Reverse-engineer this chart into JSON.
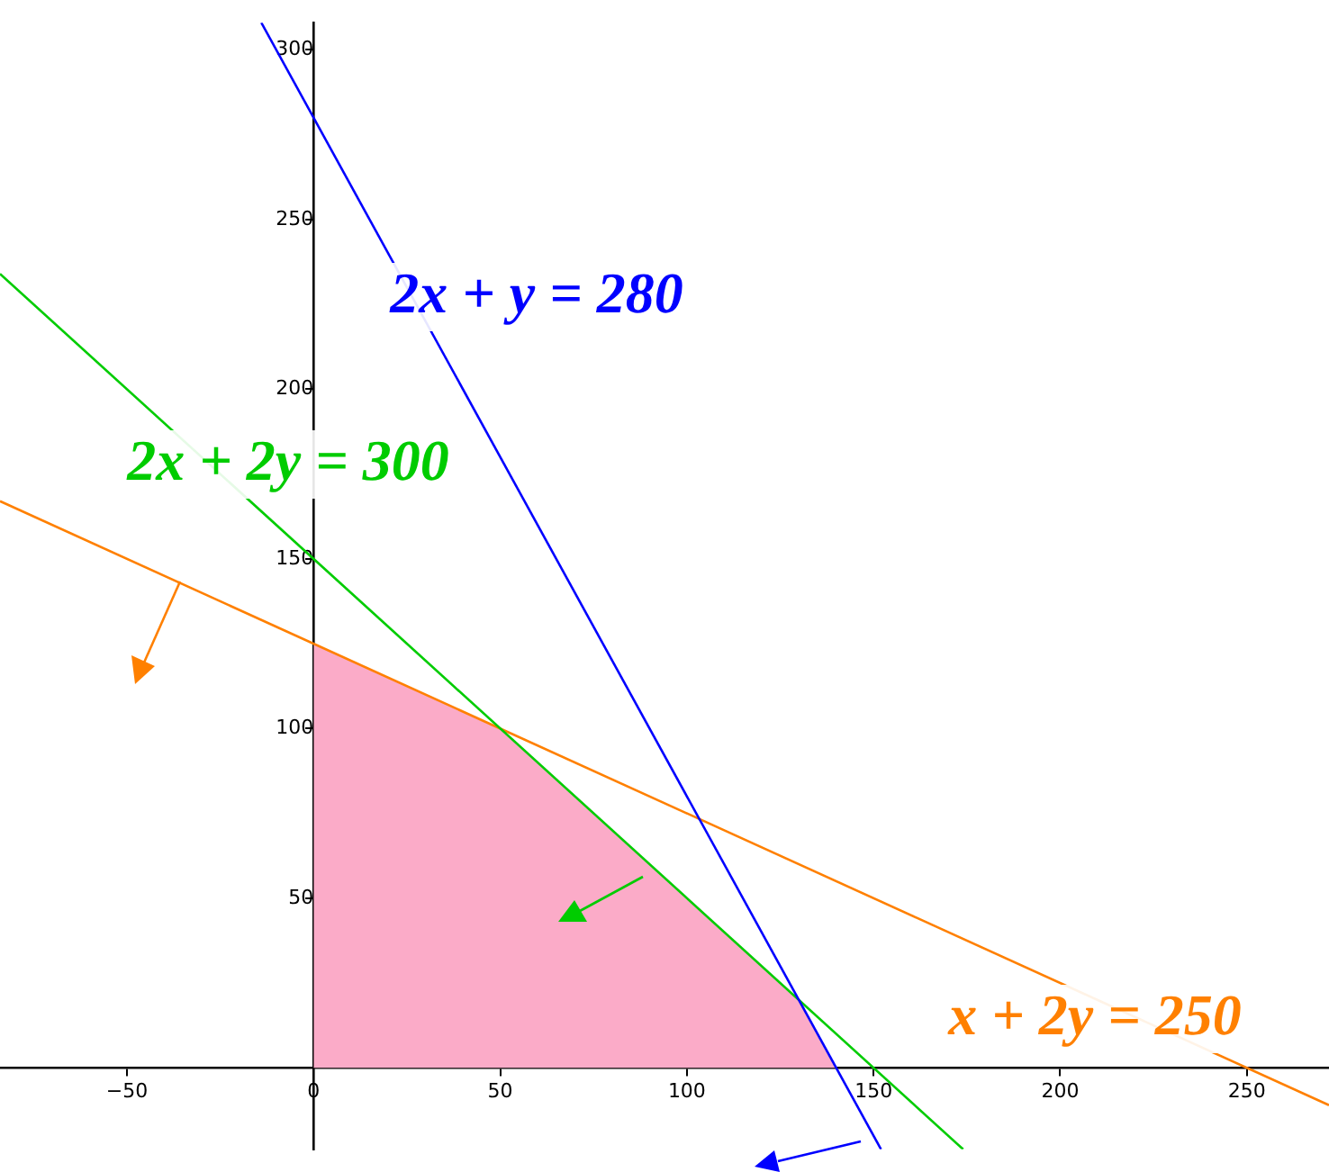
{
  "chart_data": {
    "type": "line",
    "xlim": [
      -84,
      272
    ],
    "ylim": [
      -24,
      308
    ],
    "xticks": [
      -50,
      0,
      50,
      100,
      150,
      200,
      250
    ],
    "yticks": [
      50,
      100,
      150,
      200,
      250,
      300
    ],
    "grid": false,
    "legend": false,
    "marker": "none",
    "line_style": "solid",
    "series": [
      {
        "name": "2x + y = 280",
        "color": "#0000ff",
        "x": [
          -14,
          152
        ],
        "values": [
          308,
          -24
        ]
      },
      {
        "name": "2x + 2y = 300",
        "color": "#00cc00",
        "x": [
          -84,
          174
        ],
        "values": [
          234,
          -24
        ]
      },
      {
        "name": "x + 2y = 250",
        "color": "#ff8000",
        "x": [
          -84,
          272
        ],
        "values": [
          167,
          -11
        ]
      },
      {
        "type": "area",
        "color": "#fbabc8",
        "x": [
          0,
          0,
          50,
          130,
          140
        ],
        "values": [
          0,
          125,
          100,
          20,
          0
        ]
      }
    ]
  }
}
